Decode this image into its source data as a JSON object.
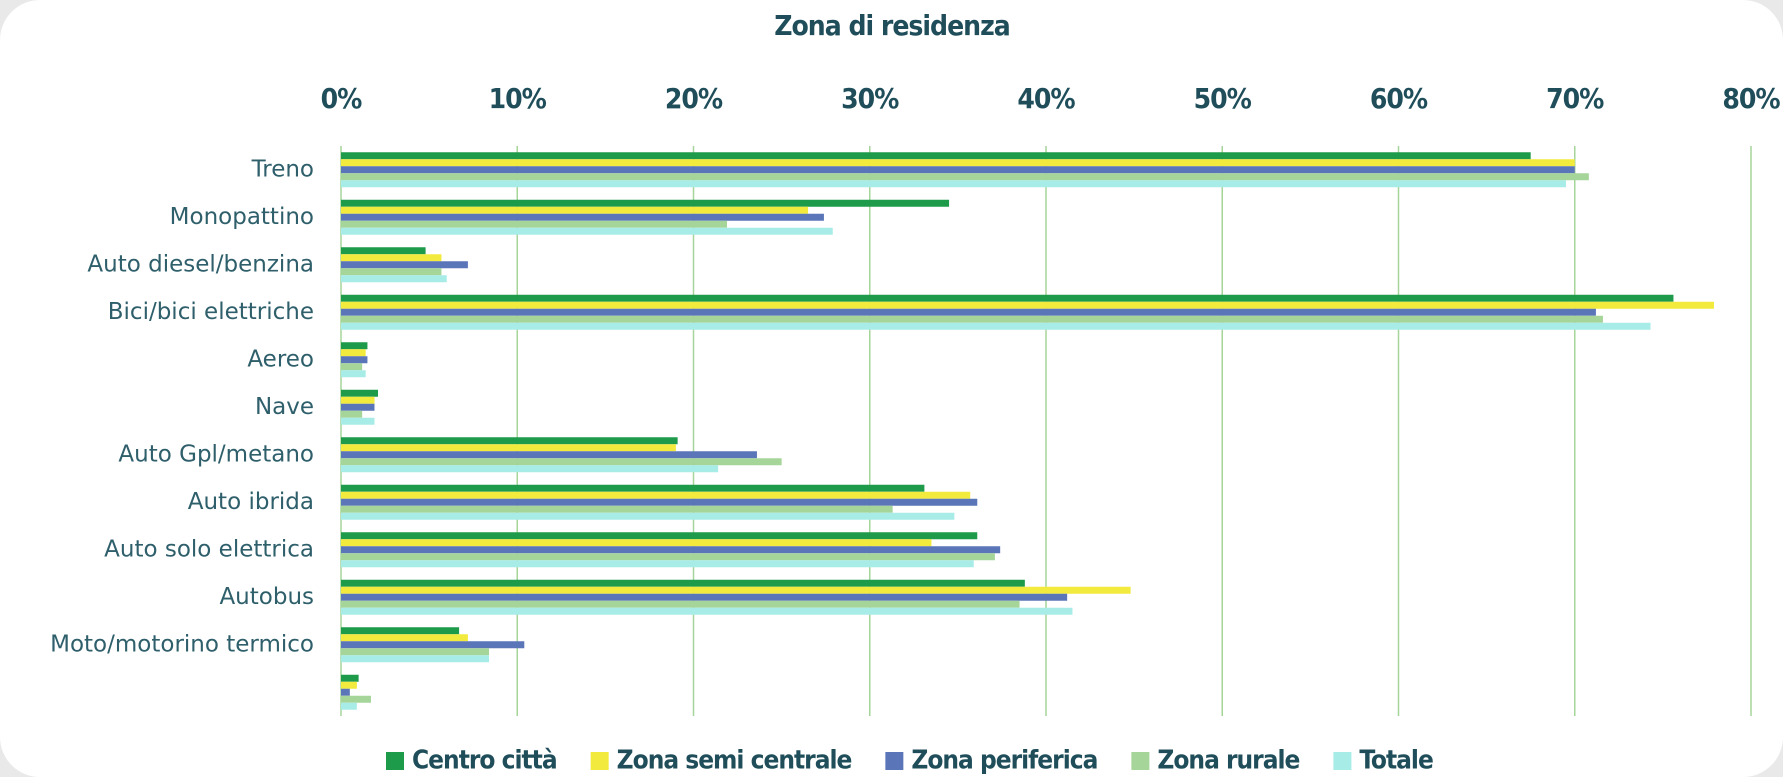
{
  "chart_data": {
    "type": "barh",
    "title": "Zona di residenza",
    "categories": [
      "Treno",
      "Monopattino",
      "Auto diesel/benzina",
      "Bici/bici elettriche",
      "Aereo",
      "Nave",
      "Auto Gpl/metano",
      "Auto ibrida",
      "Auto solo elettrica",
      "Autobus",
      "Moto/motorino termico",
      null
    ],
    "series": [
      {
        "name": "Centro città",
        "color": "#1e9a4b",
        "values": [
          67.5,
          34.5,
          4.8,
          75.6,
          1.5,
          2.1,
          19.1,
          33.1,
          36.1,
          38.8,
          6.7,
          1.0
        ]
      },
      {
        "name": "Zona semi centrale",
        "color": "#f2ea3c",
        "values": [
          70,
          26.5,
          5.7,
          77.9,
          1.4,
          1.9,
          19.0,
          35.7,
          33.5,
          44.8,
          7.2,
          0.9
        ]
      },
      {
        "name": "Zona periferica",
        "color": "#5a75b8",
        "values": [
          70,
          27.4,
          7.2,
          71.2,
          1.5,
          1.9,
          23.6,
          36.1,
          37.4,
          41.2,
          10.4,
          0.5
        ]
      },
      {
        "name": "Zona rurale",
        "color": "#a6d59a",
        "values": [
          70.8,
          21.9,
          5.7,
          71.6,
          1.2,
          1.2,
          25.0,
          31.3,
          37.1,
          38.5,
          8.4,
          1.7
        ]
      },
      {
        "name": "Totale",
        "color": "#a8ece8",
        "values": [
          69.5,
          27.9,
          6.0,
          74.3,
          1.4,
          1.9,
          21.4,
          34.8,
          35.9,
          41.5,
          8.4,
          0.9
        ]
      }
    ],
    "xlim": [
      0,
      80
    ],
    "xticks": [
      {
        "value": 0,
        "label": "0%"
      },
      {
        "value": 10,
        "label": "10%"
      },
      {
        "value": 20,
        "label": "20%"
      },
      {
        "value": 30,
        "label": "30%"
      },
      {
        "value": 40,
        "label": "40%"
      },
      {
        "value": 50,
        "label": "50%"
      },
      {
        "value": 60,
        "label": "60%"
      },
      {
        "value": 70,
        "label": "70%"
      },
      {
        "value": 80,
        "label": "80%"
      }
    ],
    "grid": true,
    "legend": "bottom"
  }
}
